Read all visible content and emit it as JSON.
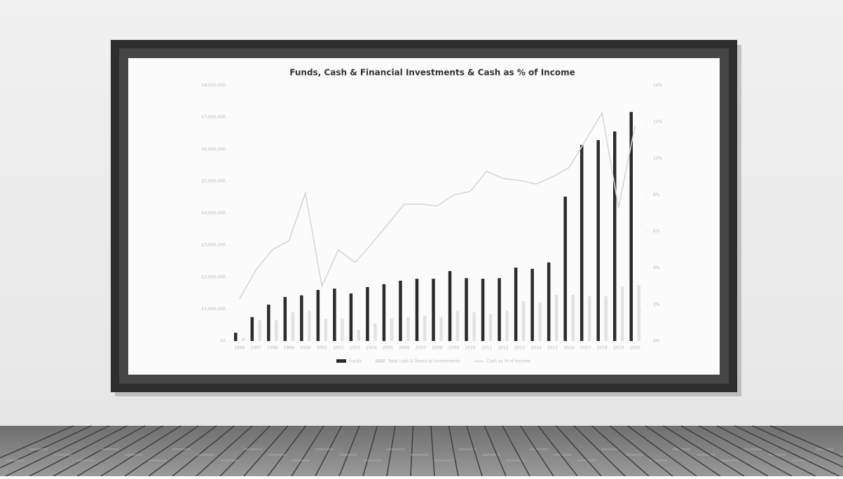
{
  "chart_data": {
    "type": "bar",
    "title": "Funds, Cash & Financial Investments & Cash as % of Income",
    "categories": [
      "1996",
      "1997",
      "1998",
      "1999",
      "2000",
      "2001",
      "2002",
      "2003",
      "2004",
      "2005",
      "2006",
      "2007",
      "2008",
      "2009",
      "2010",
      "2011",
      "2012",
      "2013",
      "2014",
      "2015",
      "2016",
      "2017",
      "2018",
      "2019",
      "2020"
    ],
    "series": [
      {
        "name": "Funds",
        "color": "#2b2b2b",
        "type": "bar",
        "values": [
          260000,
          750000,
          1140000,
          1380000,
          1430000,
          1600000,
          1640000,
          1490000,
          1690000,
          1780000,
          1890000,
          1950000,
          1950000,
          2190000,
          1970000,
          1950000,
          1970000,
          2300000,
          2260000,
          2460000,
          4520000,
          6140000,
          6290000,
          6560000,
          7170000
        ]
      },
      {
        "name": "Total cash & financial investments",
        "color": "#e2e2e2",
        "type": "bar",
        "values": [
          100000,
          650000,
          650000,
          900000,
          950000,
          700000,
          700000,
          350000,
          550000,
          700000,
          750000,
          800000,
          750000,
          950000,
          900000,
          850000,
          950000,
          1250000,
          1200000,
          1450000,
          1450000,
          1400000,
          1400000,
          1700000,
          1750000
        ]
      },
      {
        "name": "Cash as % of income",
        "color": "#d4d4d4",
        "type": "line",
        "axis": "y2",
        "values": [
          2.3,
          3.9,
          5.0,
          5.5,
          8.1,
          3.0,
          5.0,
          4.3,
          5.3,
          6.4,
          7.5,
          7.5,
          7.4,
          8.0,
          8.2,
          9.3,
          8.9,
          8.8,
          8.6,
          9.0,
          9.5,
          11.0,
          12.5,
          7.3,
          11.8
        ]
      }
    ],
    "ylim": [
      0,
      8000000
    ],
    "yticks": [
      {
        "value": 0,
        "label": "£0"
      },
      {
        "value": 1000000,
        "label": "£1,000,000"
      },
      {
        "value": 2000000,
        "label": "£2,000,000"
      },
      {
        "value": 3000000,
        "label": "£3,000,000"
      },
      {
        "value": 4000000,
        "label": "£4,000,000"
      },
      {
        "value": 5000000,
        "label": "£5,000,000"
      },
      {
        "value": 6000000,
        "label": "£6,000,000"
      },
      {
        "value": 7000000,
        "label": "£7,000,000"
      },
      {
        "value": 8000000,
        "label": "£8,000,000"
      }
    ],
    "y2lim": [
      0,
      14
    ],
    "y2ticks": [
      {
        "value": 0,
        "label": "0%"
      },
      {
        "value": 2,
        "label": "2%"
      },
      {
        "value": 4,
        "label": "4%"
      },
      {
        "value": 6,
        "label": "6%"
      },
      {
        "value": 8,
        "label": "8%"
      },
      {
        "value": 10,
        "label": "10%"
      },
      {
        "value": 12,
        "label": "12%"
      },
      {
        "value": 14,
        "label": "14%"
      }
    ],
    "grid": false,
    "legend": "bottom"
  }
}
